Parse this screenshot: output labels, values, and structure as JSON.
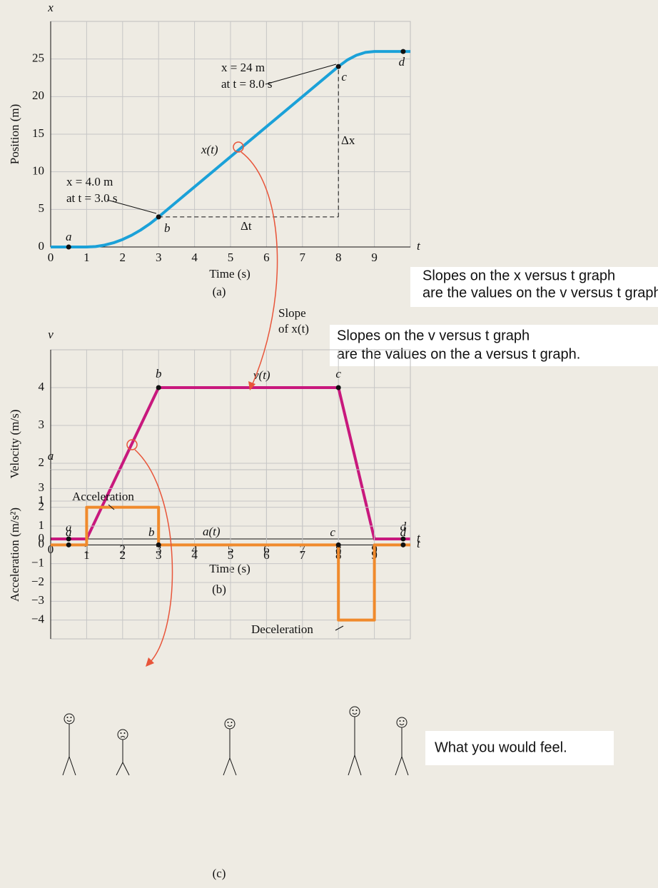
{
  "chart_data": [
    {
      "type": "line",
      "panel_label": "(a)",
      "y_symbol": "x",
      "x_symbol": "t",
      "ylabel": "Position (m)",
      "xlabel": "Time (s)",
      "xlim": [
        0,
        10
      ],
      "ylim": [
        0,
        30
      ],
      "xticks": [
        0,
        1,
        2,
        3,
        4,
        5,
        6,
        7,
        8,
        9
      ],
      "yticks": [
        0,
        5,
        10,
        15,
        20,
        25
      ],
      "grid": true,
      "series": [
        {
          "name": "x(t)",
          "color": "#1ba1d8",
          "x": [
            0,
            0.5,
            1,
            1.25,
            1.5,
            1.75,
            2,
            2.25,
            2.5,
            2.75,
            3,
            8,
            8.25,
            8.5,
            8.75,
            9,
            10
          ],
          "values": [
            0,
            0,
            0,
            0.06,
            0.25,
            0.56,
            1,
            1.56,
            2.25,
            3.06,
            4,
            24,
            24.88,
            25.5,
            25.88,
            26,
            26
          ]
        }
      ],
      "points": {
        "labels": [
          "a",
          "b",
          "c",
          "d"
        ],
        "x": [
          0.5,
          3,
          8,
          9.8
        ],
        "values": [
          0,
          4,
          24,
          26
        ]
      },
      "annotations": [
        "x = 4.0 m",
        "at t = 3.0 s",
        "x = 24 m",
        "at t = 8.0 s",
        "Δx",
        "Δt"
      ]
    },
    {
      "type": "line",
      "panel_label": "(b)",
      "y_symbol": "v",
      "x_symbol": "t",
      "ylabel": "Velocity (m/s)",
      "xlabel": "Time (s)",
      "xlim": [
        0,
        10
      ],
      "ylim": [
        0,
        5
      ],
      "xticks": [
        0,
        1,
        2,
        3,
        4,
        5,
        6,
        7,
        8,
        9
      ],
      "yticks": [
        0,
        1,
        2,
        3,
        4
      ],
      "grid": true,
      "series": [
        {
          "name": "v(t)",
          "color": "#c8187d",
          "x": [
            0,
            1,
            3,
            8,
            9,
            10
          ],
          "values": [
            0,
            0,
            4,
            4,
            0,
            0
          ]
        }
      ],
      "points": {
        "labels": [
          "a",
          "b",
          "c",
          "d"
        ],
        "x": [
          0.5,
          3,
          8,
          9.8
        ],
        "values": [
          0,
          4,
          4,
          0
        ]
      },
      "annotations": []
    },
    {
      "type": "line",
      "panel_label": "(c)",
      "y_symbol": "a",
      "x_symbol": "t",
      "ylabel": "Acceleration (m/s²)",
      "xlim": [
        0,
        10
      ],
      "ylim": [
        -5,
        4
      ],
      "xticks": [
        1,
        2,
        3,
        4,
        5,
        6,
        7,
        8,
        9
      ],
      "yticks": [
        {
          "value": -4,
          "label": "−4"
        },
        {
          "value": -3,
          "label": "−3"
        },
        {
          "value": -2,
          "label": "−2"
        },
        {
          "value": -1,
          "label": "−1"
        },
        0,
        1,
        2,
        3
      ],
      "grid": true,
      "series": [
        {
          "name": "a(t)",
          "color": "#f08a2c",
          "x": [
            0,
            1,
            1,
            3,
            3,
            8,
            8,
            9,
            9,
            10
          ],
          "values": [
            0,
            0,
            2,
            2,
            0,
            0,
            -4,
            -4,
            0,
            0
          ]
        }
      ],
      "points": {
        "labels": [
          "a",
          "b",
          "c",
          "d"
        ],
        "x": [
          0.5,
          3,
          8,
          9.8
        ],
        "values": [
          0,
          0,
          0,
          0
        ]
      },
      "annotations": [
        "Acceleration",
        "Deceleration"
      ]
    }
  ],
  "slope_note": [
    "Slope",
    "of x(t)"
  ],
  "callouts": [
    [
      "Slopes on the x versus t graph",
      "are the values on the v versus t graph."
    ],
    [
      "Slopes on the v versus t graph",
      "are the values on the a versus t graph."
    ]
  ],
  "feel_label": "What you would feel."
}
